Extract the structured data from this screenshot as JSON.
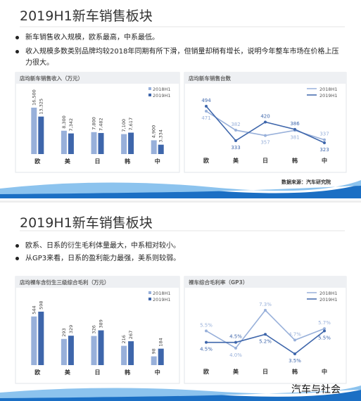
{
  "slides": [
    {
      "title": "2019H1新车销售板块",
      "bullets": [
        "新车销售收入规模，欧系最高，中系最低。",
        "收入规模多数类别品牌均较2018年同期有所下滑，但销量却稍有增长，说明今年整车市场在价格上压力很大。"
      ],
      "source": "数据来源：汽车研究院"
    },
    {
      "title": "2019H1新车销售板块",
      "bullets": [
        "欧系、日系的衍生毛利体量最大，中系相对较小。",
        "从GP3来看，日系的盈利能力最强，美系则较弱。"
      ]
    }
  ],
  "watermark": "汽车与社会",
  "chart_data": [
    {
      "type": "bar",
      "title": "店均新车销售收入（万元）",
      "categories": [
        "欧",
        "美",
        "日",
        "韩",
        "中"
      ],
      "series": [
        {
          "name": "2018H1",
          "color": "#98b0da",
          "values": [
            16500,
            8300,
            7800,
            7100,
            4900
          ],
          "value_labels": [
            "16,500",
            "8,300",
            "7,800",
            "7,100",
            "4,900"
          ]
        },
        {
          "name": "2019H1",
          "color": "#3e66ab",
          "values": [
            13325,
            7342,
            7482,
            7617,
            3334
          ],
          "value_labels": [
            "13,325",
            "7,342",
            "7,482",
            "7,617",
            "3,334"
          ]
        }
      ]
    },
    {
      "type": "line",
      "title": "店均新车销售台数",
      "categories": [
        "欧",
        "美",
        "日",
        "韩",
        "中"
      ],
      "series": [
        {
          "name": "2018H1",
          "color": "#98b0da",
          "values": [
            471,
            382,
            357,
            381,
            337
          ]
        },
        {
          "name": "2019H1",
          "color": "#3e66ab",
          "values": [
            494,
            333,
            420,
            386,
            323
          ]
        }
      ]
    },
    {
      "type": "bar",
      "title": "店均裸车含衍生三级综合毛利（万元）",
      "categories": [
        "欧",
        "美",
        "日",
        "韩",
        "中"
      ],
      "series": [
        {
          "name": "2018H1",
          "color": "#98b0da",
          "values": [
            544,
            293,
            326,
            216,
            98
          ]
        },
        {
          "name": "2019H1",
          "color": "#3e66ab",
          "values": [
            598,
            329,
            389,
            267,
            184
          ]
        }
      ]
    },
    {
      "type": "line",
      "title": "裸车综合毛利率（GP3）",
      "categories": [
        "欧",
        "美",
        "日",
        "韩",
        "中"
      ],
      "series": [
        {
          "name": "2018H1",
          "color": "#98b0da",
          "values": [
            5.5,
            4.0,
            7.3,
            4.7,
            5.7
          ],
          "value_labels": [
            "5.5%",
            "4.0%",
            "7.3%",
            "4.7%",
            "5.7%"
          ]
        },
        {
          "name": "2019H1",
          "color": "#3e66ab",
          "values": [
            4.5,
            4.5,
            5.2,
            3.5,
            5.5
          ],
          "value_labels": [
            "4.5%",
            "4.5%",
            "5.2%",
            "3.5%",
            "5.5%"
          ]
        }
      ]
    }
  ]
}
